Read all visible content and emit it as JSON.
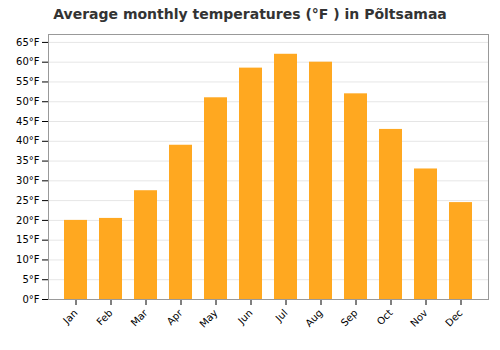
{
  "chart_data": {
    "type": "bar",
    "title": "Average monthly temperatures (°F ) in Põltsamaa",
    "categories": [
      "Jan",
      "Feb",
      "Mar",
      "Apr",
      "May",
      "Jun",
      "Jul",
      "Aug",
      "Sep",
      "Oct",
      "Nov",
      "Dec"
    ],
    "values": [
      20,
      20.5,
      27.5,
      39,
      51,
      58.5,
      62,
      60,
      52,
      43,
      33,
      24.5
    ],
    "color": "#FFA820",
    "ylim": [
      0,
      67
    ],
    "yticks": [
      {
        "value": 0,
        "label": "0°F"
      },
      {
        "value": 5,
        "label": "5°F"
      },
      {
        "value": 10,
        "label": "10°F"
      },
      {
        "value": 15,
        "label": "15°F"
      },
      {
        "value": 20,
        "label": "20°F"
      },
      {
        "value": 25,
        "label": "25°F"
      },
      {
        "value": 30,
        "label": "30°F"
      },
      {
        "value": 35,
        "label": "35°F"
      },
      {
        "value": 40,
        "label": "40°F"
      },
      {
        "value": 45,
        "label": "45°F"
      },
      {
        "value": 50,
        "label": "50°F"
      },
      {
        "value": 55,
        "label": "55°F"
      },
      {
        "value": 60,
        "label": "60°F"
      },
      {
        "value": 65,
        "label": "65°F"
      }
    ],
    "grid": true
  }
}
